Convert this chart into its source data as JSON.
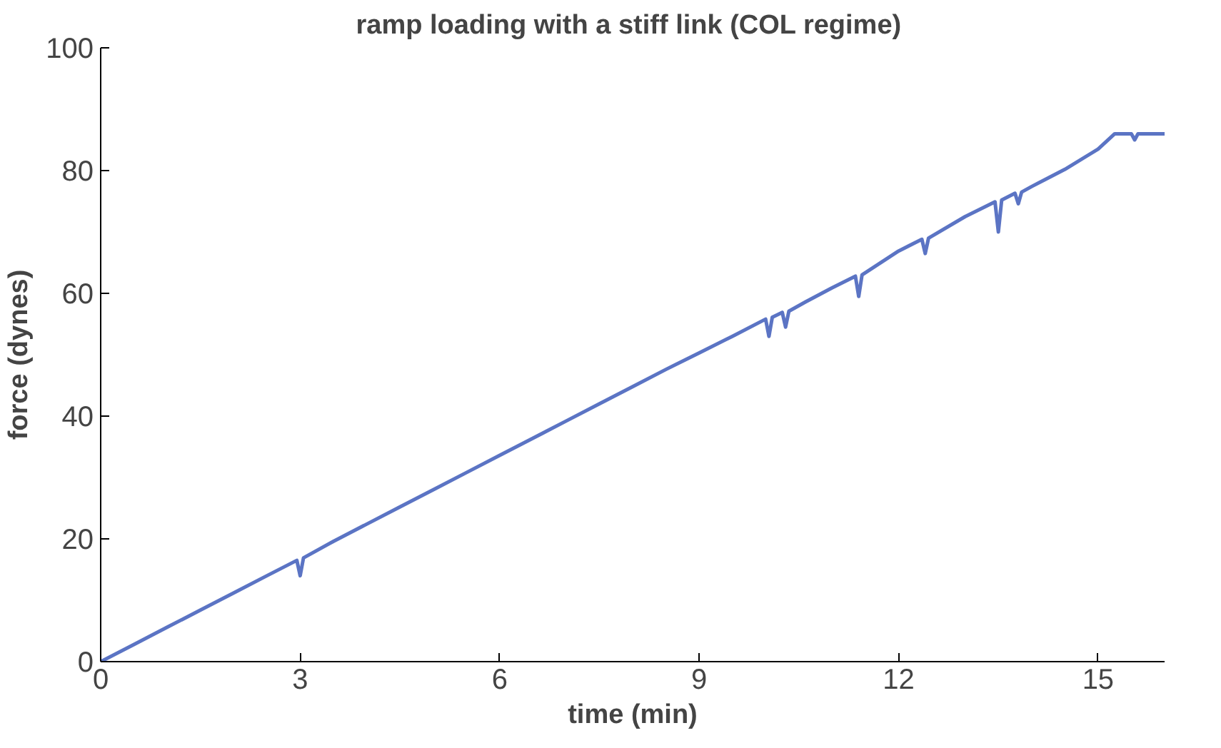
{
  "chart_data": {
    "type": "line",
    "title": "ramp loading with a stiff link  (COL regime)",
    "xlabel": "time (min)",
    "ylabel": "force (dynes)",
    "xlim": [
      0,
      16
    ],
    "xticks": [
      0,
      3,
      6,
      9,
      12,
      15
    ],
    "ylim": [
      0,
      100
    ],
    "yticks": [
      0,
      20,
      40,
      60,
      80,
      100
    ],
    "grid": false,
    "series": [
      {
        "color": "#5b74c4",
        "x": [
          0,
          0.5,
          1,
          1.5,
          2,
          2.5,
          2.95,
          3.0,
          3.05,
          3.5,
          4,
          4.5,
          5,
          5.5,
          6,
          6.5,
          7,
          7.5,
          8,
          8.5,
          9,
          9.5,
          10,
          10.05,
          10.1,
          10.25,
          10.3,
          10.35,
          10.6,
          11,
          11.35,
          11.4,
          11.45,
          12,
          12.35,
          12.4,
          12.45,
          13,
          13.45,
          13.5,
          13.55,
          13.75,
          13.8,
          13.85,
          14,
          14.5,
          15,
          15.25,
          15.5,
          15.55,
          15.6,
          16
        ],
        "values": [
          0,
          2.8,
          5.6,
          8.4,
          11.2,
          14,
          16.5,
          14,
          16.9,
          19.6,
          22.4,
          25.2,
          28,
          30.8,
          33.6,
          36.4,
          39.2,
          42,
          44.8,
          47.6,
          50.3,
          53,
          55.8,
          53,
          56.1,
          56.9,
          54.5,
          57.1,
          58.6,
          60.9,
          62.8,
          59.5,
          63,
          66.9,
          68.8,
          66.5,
          69,
          72.5,
          74.9,
          70,
          75.2,
          76.3,
          74.6,
          76.5,
          77.4,
          80.2,
          83.5,
          86,
          86,
          85,
          86,
          86
        ]
      }
    ]
  }
}
